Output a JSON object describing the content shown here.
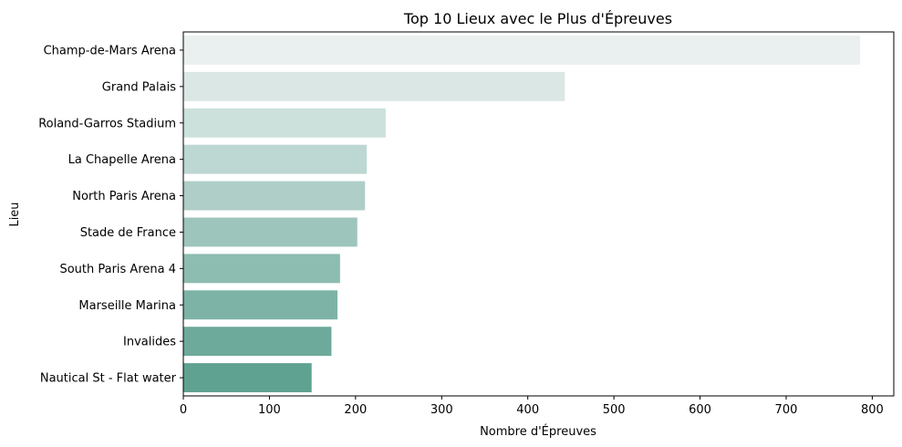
{
  "chart_data": {
    "type": "bar",
    "orientation": "horizontal",
    "title": "Top 10 Lieux avec le Plus d'Épreuves",
    "xlabel": "Nombre d'Épreuves",
    "ylabel": "Lieu",
    "categories": [
      "Champ-de-Mars Arena",
      "Grand Palais",
      "Roland-Garros Stadium",
      "La Chapelle Arena",
      "North Paris Arena",
      "Stade de France",
      "South Paris Arena 4",
      "Marseille Marina",
      "Invalides",
      "Nautical St - Flat water"
    ],
    "values": [
      786,
      443,
      235,
      213,
      211,
      202,
      182,
      179,
      172,
      149
    ],
    "xlim": [
      0,
      825
    ],
    "xticks": [
      0,
      100,
      200,
      300,
      400,
      500,
      600,
      700,
      800
    ],
    "colors": [
      "#eaf0ef",
      "#dbe7e5",
      "#cce1dc",
      "#bdd7d2",
      "#aecec7",
      "#9dc5bb",
      "#8dbcb0",
      "#7db3a7",
      "#6eaa9c",
      "#60a291"
    ],
    "grid": false,
    "legend": "none"
  }
}
